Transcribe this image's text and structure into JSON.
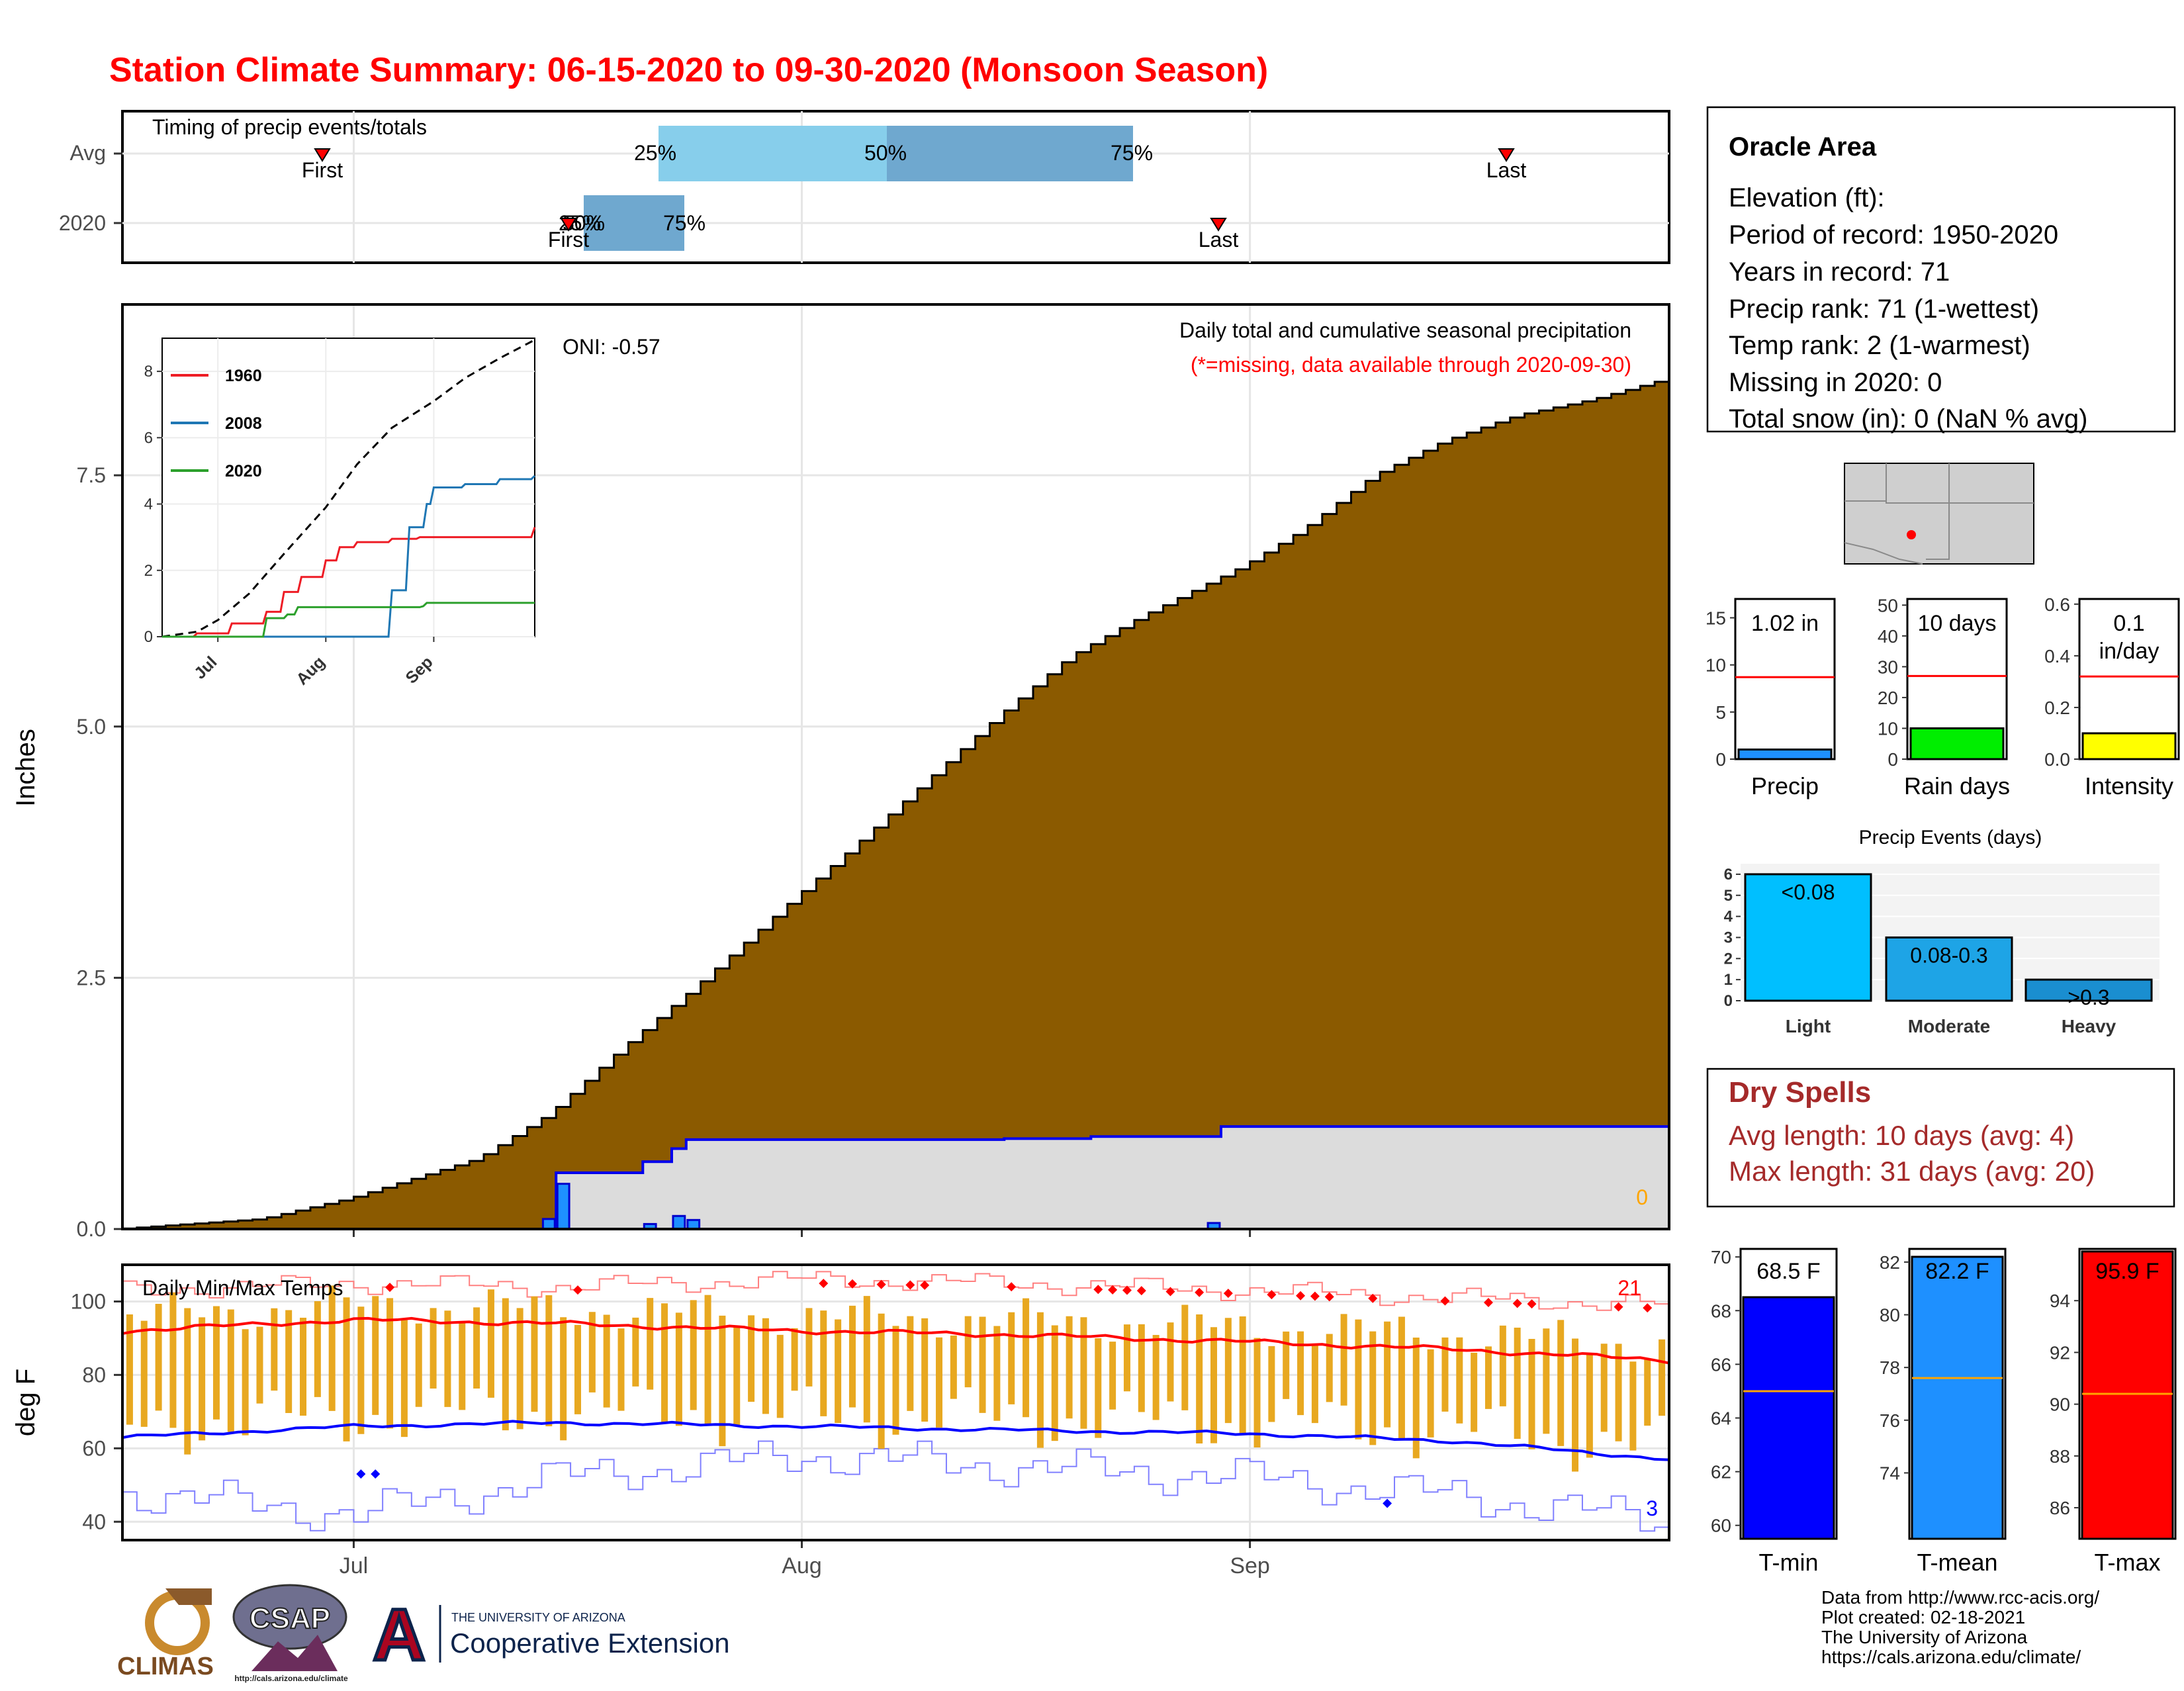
{
  "title": "Station Climate Summary: 06-15-2020 to 09-30-2020 (Monsoon Season)",
  "colors": {
    "title": "#ff0000",
    "cumulative_fill": "#8b5a00",
    "current_fill": "#dcdcdc",
    "current_line": "#0000ee",
    "daily_bar": "#1e90ff",
    "tmax_avg": "#ff0000",
    "tmin_avg": "#0000ff",
    "range_bar": "#e8a820",
    "dry_spells": "#a52a2a",
    "light": "#00bfff",
    "moderate": "#1ea4e6",
    "heavy": "#1a8ed0"
  },
  "timing_panel": {
    "label": "Timing of precip events/totals",
    "rows": [
      {
        "name": "Avg",
        "first_label": "First",
        "last_label": "Last",
        "q25": "25%",
        "q50": "50%",
        "q75": "75%"
      },
      {
        "name": "2020",
        "first_label": "First",
        "last_label": "Last",
        "q25": "25%",
        "q50": "50%",
        "q75": "75%"
      }
    ]
  },
  "main_panel": {
    "ylabel": "Inches",
    "title": "Daily total and cumulative seasonal precipitation",
    "note": "(*=missing, data available through 2020-09-30)",
    "oni": "ONI: -0.57",
    "missing_count": "0",
    "y_ticks": [
      "0.0",
      "2.5",
      "5.0",
      "7.5"
    ],
    "x_ticks": [
      "Jul",
      "Aug",
      "Sep"
    ]
  },
  "inset": {
    "legend": [
      "1960",
      "2008",
      "2020"
    ],
    "y_ticks": [
      "0",
      "2",
      "4",
      "6",
      "8"
    ],
    "x_ticks": [
      "Jul",
      "Aug",
      "Sep"
    ]
  },
  "temp_panel": {
    "label": "Daily Min/Max Temps",
    "ylabel": "deg F",
    "y_ticks": [
      "40",
      "60",
      "80",
      "100"
    ],
    "x_ticks": [
      "Jul",
      "Aug",
      "Sep"
    ],
    "max_count": "21",
    "min_count": "3"
  },
  "station": {
    "name": "Oracle Area",
    "lines": [
      "Elevation (ft):",
      "Period of record: 1950-2020",
      "Years in record: 71",
      "Precip rank: 71 (1-wettest)",
      "Temp rank: 2 (1-warmest)",
      "Missing in 2020: 0",
      "Total snow (in): 0 (NaN % avg)"
    ]
  },
  "mini_bars": [
    {
      "label": "Precip",
      "value_text": "1.02 in",
      "value": 1.02,
      "avg": 8.7,
      "ymax": 17,
      "ticks": [
        "0",
        "5",
        "10",
        "15"
      ],
      "tick_vals": [
        0,
        5,
        10,
        15
      ],
      "color": "#1e90ff"
    },
    {
      "label": "Rain days",
      "value_text": "10 days",
      "value": 10,
      "avg": 27,
      "ymax": 52,
      "ticks": [
        "0",
        "10",
        "20",
        "30",
        "40",
        "50"
      ],
      "tick_vals": [
        0,
        10,
        20,
        30,
        40,
        50
      ],
      "color": "#00ee00"
    },
    {
      "label": "Intensity",
      "value_text": "0.1",
      "value_text2": "in/day",
      "value": 0.1,
      "avg": 0.32,
      "ymax": 0.62,
      "ticks": [
        "0.0",
        "0.2",
        "0.4",
        "0.6"
      ],
      "tick_vals": [
        0,
        0.2,
        0.4,
        0.6
      ],
      "color": "#ffff00"
    }
  ],
  "precip_events": {
    "title": "Precip Events (days)",
    "categories": [
      "Light",
      "Moderate",
      "Heavy"
    ],
    "bar_labels": [
      "<0.08",
      "0.08-0.3",
      ">0.3"
    ],
    "values": [
      6,
      3,
      1
    ],
    "y_ticks": [
      "0",
      "1",
      "2",
      "3",
      "4",
      "5",
      "6"
    ]
  },
  "dry_spells": {
    "title": "Dry Spells",
    "avg_line": "Avg length: 10 days (avg: 4)",
    "max_line": "Max length: 31 days (avg: 20)"
  },
  "temp_bars": [
    {
      "label": "T-min",
      "value_text": "68.5 F",
      "value": 68.5,
      "avg": 65.0,
      "ymin": 59.5,
      "ymax": 70.3,
      "ticks": [
        "60",
        "62",
        "64",
        "66",
        "68",
        "70"
      ],
      "tick_vals": [
        60,
        62,
        64,
        66,
        68,
        70
      ],
      "color": "#0000ff"
    },
    {
      "label": "T-mean",
      "value_text": "82.2 F",
      "value": 82.2,
      "avg": 77.6,
      "ymin": 71.5,
      "ymax": 82.5,
      "ticks": [
        "74",
        "76",
        "78",
        "80",
        "82"
      ],
      "tick_vals": [
        74,
        76,
        78,
        80,
        82
      ],
      "color": "#1e90ff"
    },
    {
      "label": "T-max",
      "value_text": "95.9 F",
      "value": 95.9,
      "avg": 90.4,
      "ymin": 84.8,
      "ymax": 96.0,
      "ticks": [
        "86",
        "88",
        "90",
        "92",
        "94"
      ],
      "tick_vals": [
        86,
        88,
        90,
        92,
        94
      ],
      "color": "#ff0000"
    }
  ],
  "credits": [
    "Data from http://www.rcc-acis.org/",
    "Plot created: 02-18-2021",
    "The University of Arizona",
    "https://cals.arizona.edu/climate/"
  ],
  "logos": {
    "climas": "CLIMAS",
    "csap": "CSAP",
    "csap_url": "http://cals.arizona.edu/climate",
    "ua_small": "THE UNIVERSITY OF ARIZONA",
    "ua_big": "Cooperative Extension"
  },
  "chart_data": [
    {
      "type": "area",
      "title": "Daily total and cumulative seasonal precipitation",
      "ylabel": "Inches",
      "ylim": [
        0,
        9.2
      ],
      "x_range": [
        "2020-06-15",
        "2020-09-30"
      ],
      "series": [
        {
          "name": "",
          "x": [
            "06-15",
            "06-25",
            "07-01",
            "07-10",
            "07-15",
            "07-20",
            "07-25",
            "08-01",
            "08-05",
            "08-10",
            "08-15",
            "08-20",
            "08-25",
            "09-01",
            "09-05",
            "09-10",
            "09-15",
            "09-20",
            "09-25",
            "09-30"
          ],
          "y": [
            0.0,
            0.1,
            0.3,
            0.7,
            1.15,
            1.8,
            2.4,
            3.3,
            3.8,
            4.45,
            5.1,
            5.7,
            6.1,
            6.6,
            6.95,
            7.5,
            7.85,
            8.1,
            8.25,
            8.45
          ]
        },
        {
          "name": "",
          "x": [
            "06-15",
            "07-14",
            "07-15",
            "07-20",
            "07-21",
            "07-23",
            "07-24",
            "08-01",
            "08-15",
            "08-21",
            "08-29",
            "08-30",
            "09-30"
          ],
          "y": [
            0.0,
            0.0,
            0.56,
            0.56,
            0.67,
            0.8,
            0.89,
            0.89,
            0.9,
            0.92,
            0.92,
            1.02,
            1.02
          ]
        },
        {
          "name": "",
          "x": [
            "07-14",
            "07-15",
            "07-21",
            "07-23",
            "07-24",
            "08-29"
          ],
          "y": [
            0.1,
            0.45,
            0.05,
            0.13,
            0.09,
            0.06
          ]
        }
      ]
    },
    {
      "type": "line",
      "title": "",
      "ylim": [
        0,
        9
      ],
      "series": [
        {
          "name": "",
          "x": [
            "06-15",
            "06-25",
            "07-01",
            "07-10",
            "07-20",
            "08-01",
            "08-10",
            "08-20",
            "09-01",
            "09-10",
            "09-20",
            "09-30"
          ],
          "y": [
            0.0,
            0.15,
            0.5,
            1.3,
            2.5,
            3.9,
            5.2,
            6.3,
            7.1,
            7.8,
            8.4,
            8.95
          ]
        },
        {
          "name": "1960",
          "x": [
            "06-15",
            "06-25",
            "07-05",
            "07-15",
            "07-20",
            "07-25",
            "08-01",
            "08-05",
            "08-10",
            "08-20",
            "08-28",
            "09-30"
          ],
          "y": [
            0.0,
            0.1,
            0.4,
            0.75,
            1.35,
            1.8,
            2.3,
            2.7,
            2.85,
            2.95,
            3.0,
            3.3
          ]
        },
        {
          "name": "2008",
          "x": [
            "06-15",
            "08-15",
            "08-20",
            "08-25",
            "08-30",
            "09-01",
            "09-10",
            "09-20",
            "09-30"
          ],
          "y": [
            0.0,
            0.0,
            1.4,
            3.3,
            4.0,
            4.5,
            4.6,
            4.75,
            4.85
          ]
        },
        {
          "name": "2020",
          "x": [
            "06-15",
            "07-14",
            "07-15",
            "07-21",
            "07-24",
            "08-29",
            "08-30",
            "09-30"
          ],
          "y": [
            0.0,
            0.0,
            0.56,
            0.67,
            0.89,
            0.92,
            1.02,
            1.02
          ]
        }
      ]
    },
    {
      "type": "line",
      "title": "Daily Min/Max Temps",
      "ylabel": "deg F",
      "ylim": [
        35,
        110
      ],
      "series": [
        {
          "name": "",
          "x": [
            "06-15",
            "07-01",
            "07-15",
            "08-01",
            "08-15",
            "09-01",
            "09-15",
            "09-30"
          ],
          "y": [
            92,
            95,
            94,
            92,
            91,
            89,
            87,
            84
          ]
        },
        {
          "name": "",
          "x": [
            "06-15",
            "07-01",
            "07-15",
            "08-01",
            "08-15",
            "09-01",
            "09-15",
            "09-30"
          ],
          "y": [
            63,
            66,
            67,
            66,
            65,
            64,
            62,
            57
          ]
        },
        {
          "name": "",
          "x": [
            "06-15",
            "07-01",
            "07-15",
            "08-01",
            "08-15",
            "09-01",
            "09-15",
            "09-30"
          ],
          "y": [
            103,
            105,
            104,
            106,
            105,
            103,
            101,
            99
          ]
        },
        {
          "name": "",
          "x": [
            "06-15",
            "07-01",
            "07-15",
            "08-01",
            "08-15",
            "09-01",
            "09-15",
            "09-30"
          ],
          "y": [
            48,
            42,
            52,
            58,
            55,
            52,
            47,
            40
          ]
        }
      ]
    },
    {
      "type": "bar",
      "title": "Precip Events (days)",
      "categories": [
        "Light",
        "Moderate",
        "Heavy"
      ],
      "values": [
        6,
        3,
        1
      ],
      "ylim": [
        0,
        6.5
      ]
    }
  ]
}
